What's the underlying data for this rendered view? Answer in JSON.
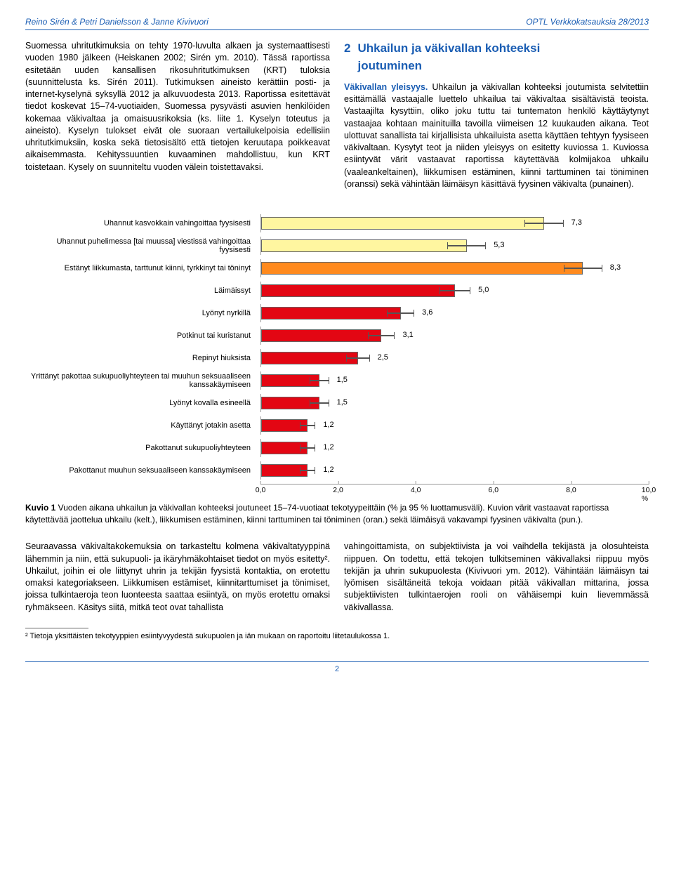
{
  "header": {
    "left": "Reino Sirén & Petri Danielsson & Janne Kivivuori",
    "right": "OPTL Verkkokatsauksia 28/2013"
  },
  "leftCol": {
    "para": "Suomessa uhritutkimuksia on tehty 1970-luvulta alkaen ja systemaattisesti vuoden 1980 jälkeen (Heiskanen 2002; Sirén ym. 2010). Tässä raportissa esitetään uuden kansallisen rikosuhritutkimuksen (KRT) tuloksia (suunnittelusta ks. Sirén 2011). Tutkimuksen aineisto kerättiin posti- ja internet-kyselynä syksyllä 2012 ja alkuvuodesta 2013. Raportissa esitettävät tiedot koskevat 15–74-vuotiaiden, Suomessa pysyvästi asuvien henkilöiden kokemaa väkivaltaa ja omaisuusrikoksia (ks. liite 1. Kyselyn toteutus ja aineisto). Kyselyn tulokset eivät ole suoraan vertailukelpoisia edellisiin uhritutkimuksiin, koska sekä tietosisältö että tietojen keruutapa poikkeavat aikaisemmasta. Kehityssuuntien kuvaaminen mahdollistuu, kun KRT toistetaan. Kysely on suunniteltu vuoden välein toistettavaksi."
  },
  "rightCol": {
    "num": "2",
    "title1": "Uhkailun ja väkivallan kohteeksi",
    "title2": "joutuminen",
    "lead": "Väkivallan yleisyys.",
    "para": " Uhkailun ja väkivallan kohteeksi joutumista selvitettiin esittämällä vastaajalle luettelo uhkailua tai väkivaltaa sisältävistä teoista. Vastaajilta kysyttiin, oliko joku tuttu tai tuntematon henkilö käyttäytynyt vastaajaa kohtaan mainituilla tavoilla viimeisen 12 kuukauden aikana. Teot ulottuvat sanallista tai kirjallisista uhkailuista asetta käyttäen tehtyyn fyysiseen väkivaltaan. Kysytyt teot ja niiden yleisyys on esitetty kuviossa 1. Kuviossa esiintyvät värit vastaavat raportissa käytettävää kolmijakoa uhkailu (vaaleankeltainen), liikkumisen estäminen, kiinni tarttuminen tai töniminen (oranssi) sekä vähintään läimäisyn käsittävä fyysinen väkivalta (punainen)."
  },
  "chart": {
    "type": "bar",
    "xmax": 10,
    "xtick_step": 2,
    "xtick_suffix_last": " %",
    "colors": {
      "yellow": "#fff6a0",
      "orange": "#ff8a1e",
      "red": "#e30613",
      "border": "#666666",
      "err": "#555555"
    },
    "rows": [
      {
        "label": "Uhannut kasvokkain vahingoittaa fyysisesti",
        "value": 7.3,
        "err": 0.5,
        "color": "yellow"
      },
      {
        "label": "Uhannut puhelimessa [tai muussa] viestissä vahingoittaa fyysisesti",
        "value": 5.3,
        "err": 0.5,
        "color": "yellow"
      },
      {
        "label": "Estänyt liikkumasta, tarttunut kiinni, tyrkkinyt tai töninyt",
        "value": 8.3,
        "err": 0.5,
        "color": "orange"
      },
      {
        "label": "Läimäissyt",
        "value": 5.0,
        "err": 0.4,
        "color": "red"
      },
      {
        "label": "Lyönyt nyrkillä",
        "value": 3.6,
        "err": 0.35,
        "color": "red"
      },
      {
        "label": "Potkinut tai kuristanut",
        "value": 3.1,
        "err": 0.35,
        "color": "red"
      },
      {
        "label": "Repinyt hiuksista",
        "value": 2.5,
        "err": 0.3,
        "color": "red"
      },
      {
        "label": "Yrittänyt pakottaa sukupuoliyhteyteen tai muuhun seksuaaliseen kanssakäymiseen",
        "value": 1.5,
        "err": 0.25,
        "color": "red"
      },
      {
        "label": "Lyönyt kovalla esineellä",
        "value": 1.5,
        "err": 0.25,
        "color": "red"
      },
      {
        "label": "Käyttänyt jotakin asetta",
        "value": 1.2,
        "err": 0.2,
        "color": "red"
      },
      {
        "label": "Pakottanut sukupuoliyhteyteen",
        "value": 1.2,
        "err": 0.2,
        "color": "red"
      },
      {
        "label": "Pakottanut muuhun seksuaaliseen kanssakäymiseen",
        "value": 1.2,
        "err": 0.2,
        "color": "red"
      }
    ]
  },
  "caption": {
    "bold": "Kuvio 1",
    "text": " Vuoden aikana uhkailun ja väkivallan kohteeksi joutuneet 15–74-vuotiaat tekotyypeittäin (% ja 95 % luottamusväli). Kuvion värit vastaavat raportissa käytettävää jaottelua uhkailu (kelt.), liikkumisen estäminen, kiinni tarttuminen tai töniminen (oran.) sekä läimäisyä vakavampi fyysinen väkivalta (pun.)."
  },
  "bottom": {
    "left": "Seuraavassa väkivaltakokemuksia on tarkasteltu kolmena väkivaltatyyppinä lähemmin ja niin, että sukupuoli- ja ikäryhmäkohtaiset tiedot on myös esitetty². Uhkailut, joihin ei ole liittynyt uhrin ja tekijän fyysistä kontaktia, on erotettu omaksi kategoriakseen. Liikkumisen estämiset, kiinnitarttumiset ja tönimiset, joissa tulkintaeroja teon luonteesta saattaa esiintyä, on myös erotettu omaksi ryhmäkseen. Käsitys siitä, mitkä teot ovat tahallista",
    "right": "vahingoittamista, on subjektiivista ja voi vaihdella tekijästä ja olosuhteista riippuen. On todettu, että tekojen tulkitseminen väkivallaksi riippuu myös tekijän ja uhrin sukupuolesta (Kivivuori ym. 2012). Vähintään läimäisyn tai lyömisen sisältäneitä tekoja voidaan pitää väkivallan mittarina, jossa subjektiivisten tulkintaerojen rooli on vähäisempi kuin lievemmässä väkivallassa."
  },
  "footnote": "² Tietoja yksittäisten tekotyyppien esiintyvyydestä sukupuolen ja iän mukaan on raportoitu liitetaulukossa 1.",
  "pageNum": "2"
}
